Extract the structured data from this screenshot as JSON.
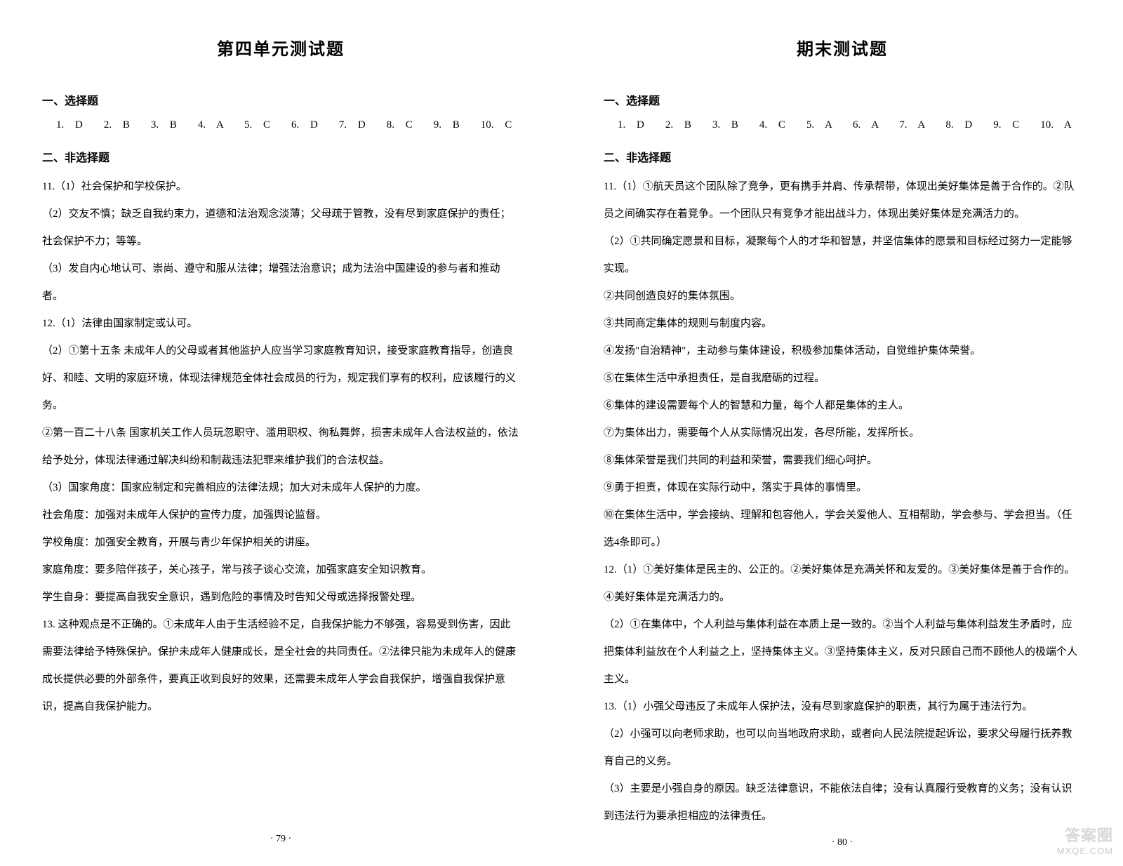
{
  "left": {
    "title": "第四单元测试题",
    "mc_heading": "一、选择题",
    "mc_answers": "1. D　　2. B　　3. B　　4. A　　5. C　　6. D　　7. D　　8. C　　9. B　　10. C",
    "nonmc_heading": "二、非选择题",
    "paras": [
      "11.（1）社会保护和学校保护。",
      "（2）交友不慎；缺乏自我约束力，道德和法治观念淡薄；父母疏于管教，没有尽到家庭保护的责任；社会保护不力；等等。",
      "（3）发自内心地认可、崇尚、遵守和服从法律；增强法治意识；成为法治中国建设的参与者和推动者。",
      "12.（1）法律由国家制定或认可。",
      "（2）①第十五条 未成年人的父母或者其他监护人应当学习家庭教育知识，接受家庭教育指导，创造良好、和睦、文明的家庭环境，体现法律规范全体社会成员的行为，规定我们享有的权利，应该履行的义务。",
      "②第一百二十八条 国家机关工作人员玩忽职守、滥用职权、徇私舞弊，损害未成年人合法权益的，依法给予处分，体现法律通过解决纠纷和制裁违法犯罪来维护我们的合法权益。",
      "（3）国家角度：国家应制定和完善相应的法律法规；加大对未成年人保护的力度。",
      "社会角度：加强对未成年人保护的宣传力度，加强舆论监督。",
      "学校角度：加强安全教育，开展与青少年保护相关的讲座。",
      "家庭角度：要多陪伴孩子，关心孩子，常与孩子谈心交流，加强家庭安全知识教育。",
      "学生自身：要提高自我安全意识，遇到危险的事情及时告知父母或选择报警处理。",
      "13. 这种观点是不正确的。①未成年人由于生活经验不足，自我保护能力不够强，容易受到伤害，因此需要法律给予特殊保护。保护未成年人健康成长，是全社会的共同责任。②法律只能为未成年人的健康成长提供必要的外部条件，要真正收到良好的效果，还需要未成年人学会自我保护，增强自我保护意识，提高自我保护能力。"
    ],
    "page_num": "· 79 ·"
  },
  "right": {
    "title": "期末测试题",
    "mc_heading": "一、选择题",
    "mc_answers": "1. D　　2. B　　3. B　　4. C　　5. A　　6. A　　7. A　　8. D　　9. C　　10. A",
    "nonmc_heading": "二、非选择题",
    "paras": [
      "11.（1）①航天员这个团队除了竞争，更有携手并肩、传承帮带，体现出美好集体是善于合作的。②队员之间确实存在着竞争。一个团队只有竞争才能出战斗力，体现出美好集体是充满活力的。",
      "（2）①共同确定愿景和目标，凝聚每个人的才华和智慧，并坚信集体的愿景和目标经过努力一定能够实现。",
      "②共同创造良好的集体氛围。",
      "③共同商定集体的规则与制度内容。",
      "④发扬\"自治精神\"，主动参与集体建设，积极参加集体活动，自觉维护集体荣誉。",
      "⑤在集体生活中承担责任，是自我磨砺的过程。",
      "⑥集体的建设需要每个人的智慧和力量，每个人都是集体的主人。",
      "⑦为集体出力，需要每个人从实际情况出发，各尽所能，发挥所长。",
      "⑧集体荣誉是我们共同的利益和荣誉，需要我们细心呵护。",
      "⑨勇于担责，体现在实际行动中，落实于具体的事情里。",
      "⑩在集体生活中，学会接纳、理解和包容他人，学会关爱他人、互相帮助，学会参与、学会担当。（任选4条即可。）",
      "12.（1）①美好集体是民主的、公正的。②美好集体是充满关怀和友爱的。③美好集体是善于合作的。④美好集体是充满活力的。",
      "（2）①在集体中，个人利益与集体利益在本质上是一致的。②当个人利益与集体利益发生矛盾时，应把集体利益放在个人利益之上，坚持集体主义。③坚持集体主义，反对只顾自己而不顾他人的极端个人主义。",
      "13.（1）小强父母违反了未成年人保护法，没有尽到家庭保护的职责，其行为属于违法行为。",
      "（2）小强可以向老师求助，也可以向当地政府求助，或者向人民法院提起诉讼，要求父母履行抚养教育自己的义务。",
      "（3）主要是小强自身的原因。缺乏法律意识，不能依法自律；没有认真履行受教育的义务；没有认识到违法行为要承担相应的法律责任。"
    ],
    "page_num": "· 80 ·"
  },
  "watermark": {
    "cn": "答案圈",
    "en": "MXQE.COM"
  },
  "styles": {
    "background_color": "#ffffff",
    "text_color": "#000000",
    "title_fontsize": 24,
    "section_fontsize": 16,
    "body_fontsize": 15,
    "line_height": 2.6,
    "pagenum_fontsize": 14,
    "watermark_color": "#c9c9c9"
  }
}
